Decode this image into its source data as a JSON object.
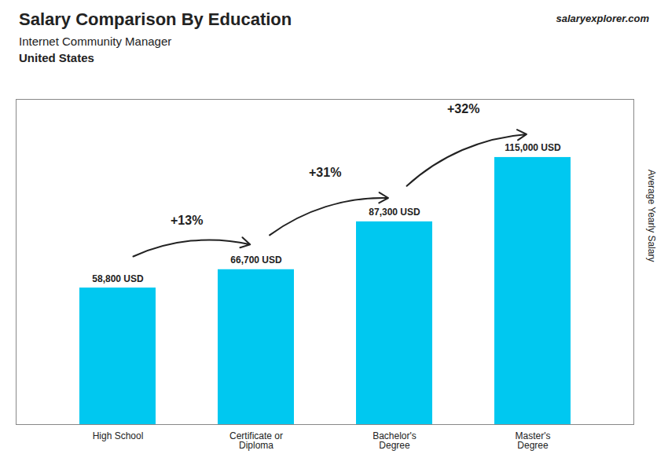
{
  "chart_data": {
    "type": "bar",
    "title": "Salary Comparison By Education",
    "subtitle": [
      "Internet Community Manager",
      "United States"
    ],
    "source": "salaryexplorer.com",
    "categories": [
      "High School",
      "Certificate or\nDiploma",
      "Bachelor's\nDegree",
      "Master's\nDegree"
    ],
    "values": [
      58800,
      66700,
      87300,
      115000
    ],
    "value_labels": [
      "58,800 USD",
      "66,700 USD",
      "87,300 USD",
      "115,000 USD"
    ],
    "data_labels": true,
    "annotations": [
      "+13%",
      "+31%",
      "+32%"
    ],
    "color": "#00c8f0",
    "ylabel": "Average Yearly Salary",
    "ylim": [
      0,
      140000
    ],
    "tick_labels": "x",
    "grid": false
  }
}
